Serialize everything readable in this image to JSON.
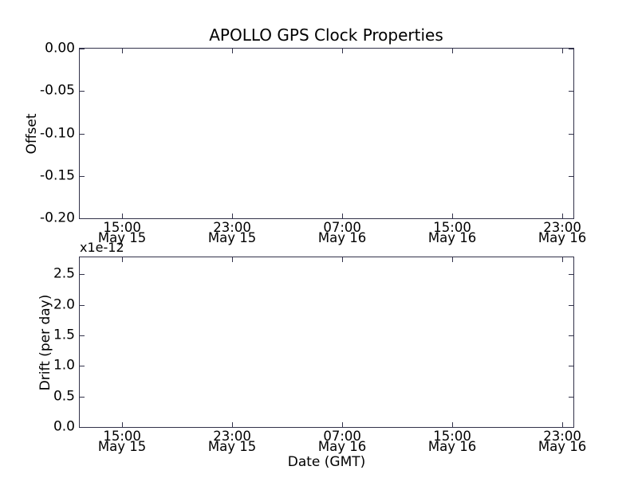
{
  "figure": {
    "title": "APOLLO GPS Clock Properties",
    "background_color": "#ffffff",
    "axes_line_color": "#32324a",
    "text_color": "#000000"
  },
  "chart_data": [
    {
      "type": "line",
      "panel": "top",
      "title": "APOLLO GPS Clock Properties",
      "xlabel": "",
      "ylabel": "Offset",
      "ylim": [
        -0.2,
        0.0
      ],
      "grid": false,
      "legend": null,
      "series": [],
      "note": "axes empty - no data plotted",
      "yticks": [
        {
          "label": "0.00",
          "frac_from_top": 0.0
        },
        {
          "label": "-0.05",
          "frac_from_top": 0.25
        },
        {
          "label": "-0.10",
          "frac_from_top": 0.5
        },
        {
          "label": "-0.15",
          "frac_from_top": 0.75
        },
        {
          "label": "-0.20",
          "frac_from_top": 1.0
        }
      ],
      "xticks": [
        {
          "time": "15:00",
          "date": "May 15",
          "frac": 0.0858
        },
        {
          "time": "23:00",
          "date": "May 15",
          "frac": 0.3087
        },
        {
          "time": "07:00",
          "date": "May 16",
          "frac": 0.5317
        },
        {
          "time": "15:00",
          "date": "May 16",
          "frac": 0.7546
        },
        {
          "time": "23:00",
          "date": "May 16",
          "frac": 0.9775
        }
      ]
    },
    {
      "type": "line",
      "panel": "bottom",
      "title": "",
      "xlabel": "Date (GMT)",
      "ylabel": "Drift (per day)",
      "offset_text": "x1e-12",
      "ylim": [
        0.0,
        2.78
      ],
      "grid": false,
      "legend": null,
      "series": [],
      "note": "axes empty - no data plotted",
      "yticks": [
        {
          "label": "2.5",
          "frac_from_top": 0.1007
        },
        {
          "label": "2.0",
          "frac_from_top": 0.2806
        },
        {
          "label": "1.5",
          "frac_from_top": 0.4604
        },
        {
          "label": "1.0",
          "frac_from_top": 0.6403
        },
        {
          "label": "0.5",
          "frac_from_top": 0.8201
        },
        {
          "label": "0.0",
          "frac_from_top": 1.0
        }
      ],
      "xticks": [
        {
          "time": "15:00",
          "date": "May 15",
          "frac": 0.0858
        },
        {
          "time": "23:00",
          "date": "May 15",
          "frac": 0.3087
        },
        {
          "time": "07:00",
          "date": "May 16",
          "frac": 0.5317
        },
        {
          "time": "15:00",
          "date": "May 16",
          "frac": 0.7546
        },
        {
          "time": "23:00",
          "date": "May 16",
          "frac": 0.9775
        }
      ]
    }
  ]
}
